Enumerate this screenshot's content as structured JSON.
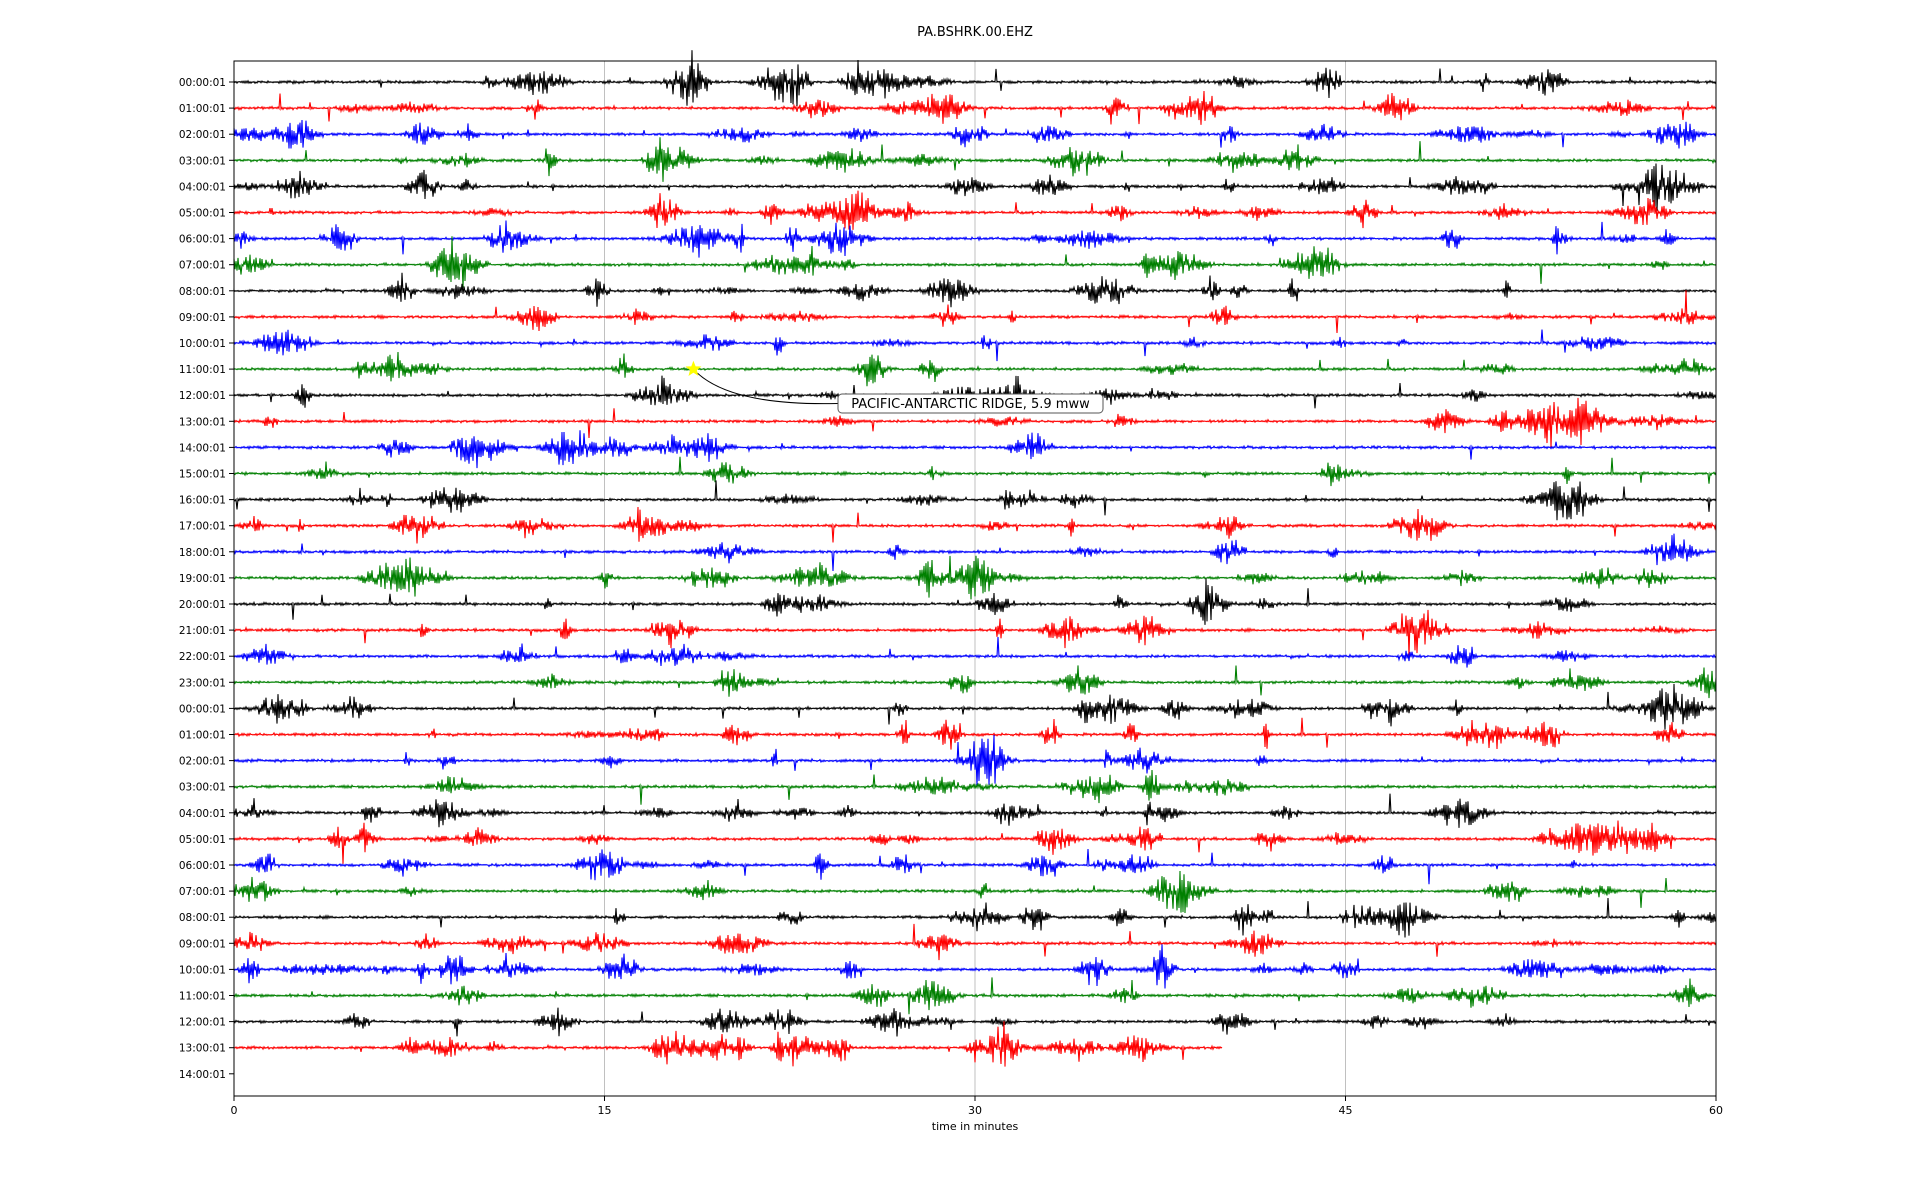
{
  "chart_data": {
    "type": "line",
    "title": "PA.BSHRK.00.EHZ",
    "xlabel": "time in minutes",
    "ylabel": "",
    "xlim": [
      0,
      60
    ],
    "xticks": [
      0,
      15,
      30,
      45,
      60
    ],
    "grid": "vertical at x ticks",
    "row_labels": [
      "00:00:01",
      "01:00:01",
      "02:00:01",
      "03:00:01",
      "04:00:01",
      "05:00:01",
      "06:00:01",
      "07:00:01",
      "08:00:01",
      "09:00:01",
      "10:00:01",
      "11:00:01",
      "12:00:01",
      "13:00:01",
      "14:00:01",
      "15:00:01",
      "16:00:01",
      "17:00:01",
      "18:00:01",
      "19:00:01",
      "20:00:01",
      "21:00:01",
      "22:00:01",
      "23:00:01",
      "00:00:01",
      "01:00:01",
      "02:00:01",
      "03:00:01",
      "04:00:01",
      "05:00:01",
      "06:00:01",
      "07:00:01",
      "08:00:01",
      "09:00:01",
      "10:00:01",
      "11:00:01",
      "12:00:01",
      "13:00:01",
      "14:00:01"
    ],
    "trace_colors": [
      "#000000",
      "#ff0000",
      "#0000ff",
      "#008000"
    ],
    "last_trace_end_minute": 40,
    "event": {
      "label": "PACIFIC-ANTARCTIC RIDGE, 5.9 mww",
      "row_index": 11,
      "minute": 18.6,
      "marker_color": "#ffff00"
    }
  }
}
